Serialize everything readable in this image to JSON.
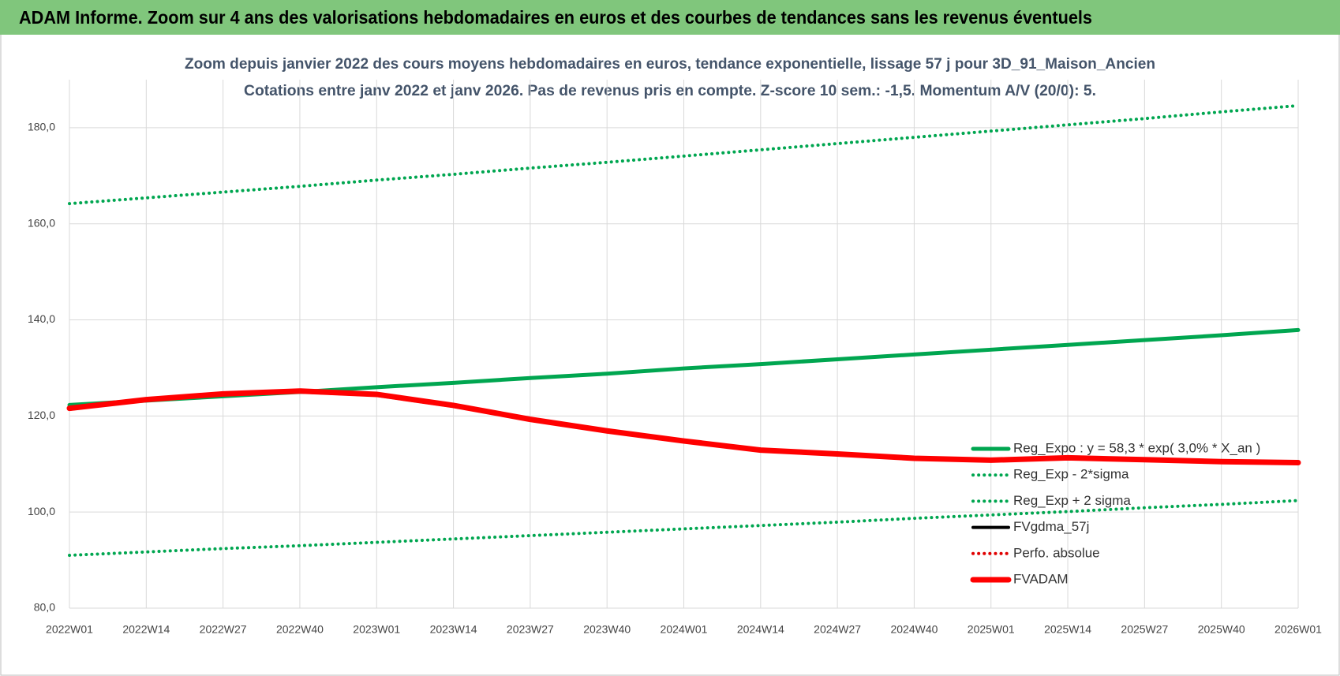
{
  "chart_data": {
    "type": "line",
    "header": "ADAM Informe. Zoom sur 4 ans des valorisations hebdomadaires en euros et des courbes de tendances sans les revenus éventuels",
    "title": "Zoom depuis janvier 2022 des cours moyens hebdomadaires en euros, tendance exponentielle, lissage 57 j pour 3D_91_Maison_Ancien",
    "subtitle": "Cotations entre janv 2022 et janv 2026. Pas de revenus pris en compte. Z-score 10 sem.: -1,5. Momentum A/V (20/0): 5.",
    "categories": [
      "2022W01",
      "2022W14",
      "2022W27",
      "2022W40",
      "2023W01",
      "2023W14",
      "2023W27",
      "2023W40",
      "2024W01",
      "2024W14",
      "2024W27",
      "2024W40",
      "2025W01",
      "2025W14",
      "2025W27",
      "2025W40",
      "2026W01"
    ],
    "series": [
      {
        "name": "Reg_Expo : y = 58,3 * exp( 3,0% *  X_an )",
        "color": "#00a650",
        "line_style": "thick",
        "values": [
          122.3,
          123.2,
          124.1,
          125.0,
          126.0,
          126.9,
          127.9,
          128.8,
          129.9,
          130.8,
          131.8,
          132.8,
          133.8,
          134.8,
          135.8,
          136.8,
          137.9
        ]
      },
      {
        "name": "Reg_Exp - 2*sigma",
        "color": "#00a650",
        "line_style": "dotted",
        "values": [
          91.0,
          91.7,
          92.4,
          93.0,
          93.7,
          94.4,
          95.1,
          95.8,
          96.5,
          97.2,
          97.9,
          98.7,
          99.4,
          100.1,
          100.9,
          101.6,
          102.4
        ]
      },
      {
        "name": "Reg_Exp + 2 sigma",
        "color": "#00a650",
        "line_style": "dotted",
        "values": [
          164.2,
          165.4,
          166.6,
          167.8,
          169.1,
          170.3,
          171.6,
          172.8,
          174.1,
          175.4,
          176.7,
          178.0,
          179.3,
          180.6,
          181.9,
          183.3,
          184.6
        ]
      },
      {
        "name": "FVgdma_57j",
        "color": "#000000",
        "line_style": "solid",
        "values": [
          121.4,
          123.3,
          124.5,
          125.0,
          124.3,
          122.0,
          119.2,
          116.8,
          114.8,
          113.0,
          112.0,
          111.1,
          110.8,
          111.2,
          110.8,
          110.5,
          110.3
        ]
      },
      {
        "name": "Perfo. absolue",
        "color": "#e00000",
        "line_style": "dotted",
        "values": [
          121.6,
          123.4,
          124.6,
          125.2,
          124.5,
          122.2,
          119.3,
          116.9,
          114.8,
          112.9,
          112.1,
          111.2,
          110.8,
          111.3,
          110.9,
          110.5,
          110.3
        ]
      },
      {
        "name": "FVADAM",
        "color": "#ff0000",
        "line_style": "bold",
        "values": [
          121.6,
          123.4,
          124.6,
          125.2,
          124.5,
          122.2,
          119.3,
          116.9,
          114.8,
          112.9,
          112.1,
          111.2,
          110.8,
          111.3,
          110.9,
          110.5,
          110.3
        ]
      }
    ],
    "ylim": [
      80,
      190
    ],
    "yticks": [
      {
        "value": 80,
        "label": "80,0"
      },
      {
        "value": 100,
        "label": "100,0"
      },
      {
        "value": 120,
        "label": "120,0"
      },
      {
        "value": 140,
        "label": "140,0"
      },
      {
        "value": 160,
        "label": "160,0"
      },
      {
        "value": 180,
        "label": "180,0"
      }
    ],
    "grid": true,
    "legend": "right"
  }
}
